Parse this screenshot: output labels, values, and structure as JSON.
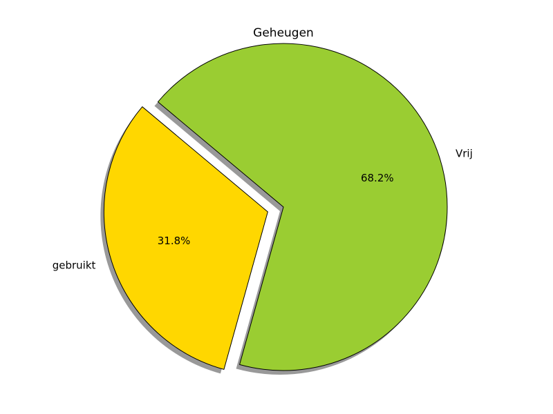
{
  "chart_data": {
    "type": "pie",
    "title": "Geheugen",
    "categories": [
      "gebruikt",
      "Vrij"
    ],
    "values": [
      31.8,
      68.2
    ],
    "value_labels": [
      "31.8%",
      "68.2%"
    ],
    "colors": [
      "#ffd700",
      "#9acd32"
    ],
    "exploded": [
      "gebruikt"
    ],
    "shadow": true,
    "start_angle_deg": 140
  }
}
